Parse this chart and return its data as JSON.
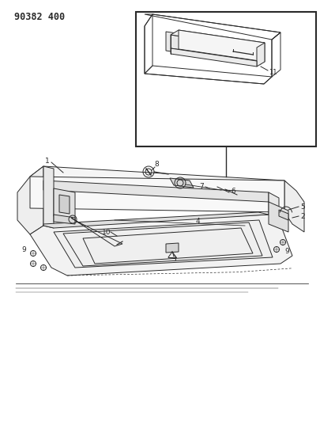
{
  "title": "90382 400",
  "bg_color": "#ffffff",
  "line_color": "#2a2a2a",
  "fig_width": 4.05,
  "fig_height": 5.33,
  "dpi": 100,
  "annotation_fontsize": 6.5,
  "title_fontsize": 8.5,
  "lw": 0.7
}
